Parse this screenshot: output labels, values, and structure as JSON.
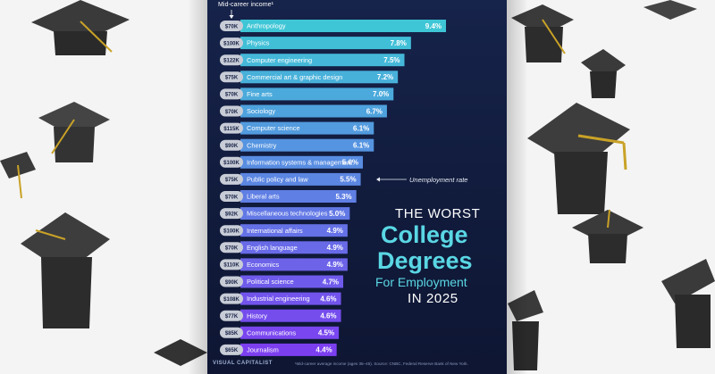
{
  "poster": {
    "header": "Mid-career income¹",
    "title_line1": "THE WORST",
    "title_line2": "College",
    "title_line3": "Degrees",
    "title_line4": "For Employment",
    "title_line5": "IN 2025",
    "annotation": "Unemployment rate",
    "logo": "VISUAL CAPITALIST",
    "footnote": "¹Mid-career average income (ages 35–45). Source: CNBC, Federal Reserve Bank of New York."
  },
  "chart_data": {
    "type": "bar",
    "orientation": "horizontal",
    "categories": [
      "Anthropology",
      "Physics",
      "Computer engineering",
      "Commercial art & graphic design",
      "Fine arts",
      "Sociology",
      "Computer science",
      "Chemistry",
      "Information systems & management",
      "Public policy and law",
      "Liberal arts",
      "Miscellaneous technologies",
      "International affairs",
      "English language",
      "Economics",
      "Political science",
      "Industrial engineering",
      "History",
      "Communications",
      "Journalism"
    ],
    "values": [
      9.4,
      7.8,
      7.5,
      7.2,
      7.0,
      6.7,
      6.1,
      6.1,
      5.6,
      5.5,
      5.3,
      5.0,
      4.9,
      4.9,
      4.9,
      4.7,
      4.6,
      4.6,
      4.5,
      4.4
    ],
    "value_labels": [
      "9.4%",
      "7.8%",
      "7.5%",
      "7.2%",
      "7.0%",
      "6.7%",
      "6.1%",
      "6.1%",
      "5.6%",
      "5.5%",
      "5.3%",
      "5.0%",
      "4.9%",
      "4.9%",
      "4.9%",
      "4.7%",
      "4.6%",
      "4.6%",
      "4.5%",
      "4.4%"
    ],
    "incomes": [
      "$70K",
      "$100K",
      "$122K",
      "$75K",
      "$70K",
      "$70K",
      "$115K",
      "$90K",
      "$100K",
      "$75K",
      "$70K",
      "$92K",
      "$100K",
      "$70K",
      "$110K",
      "$90K",
      "$108K",
      "$77K",
      "$85K",
      "$65K"
    ],
    "xlim": [
      0,
      9.4
    ],
    "bar_color_top": "#3ec6d6",
    "bar_color_bottom": "#7c3ff0"
  }
}
